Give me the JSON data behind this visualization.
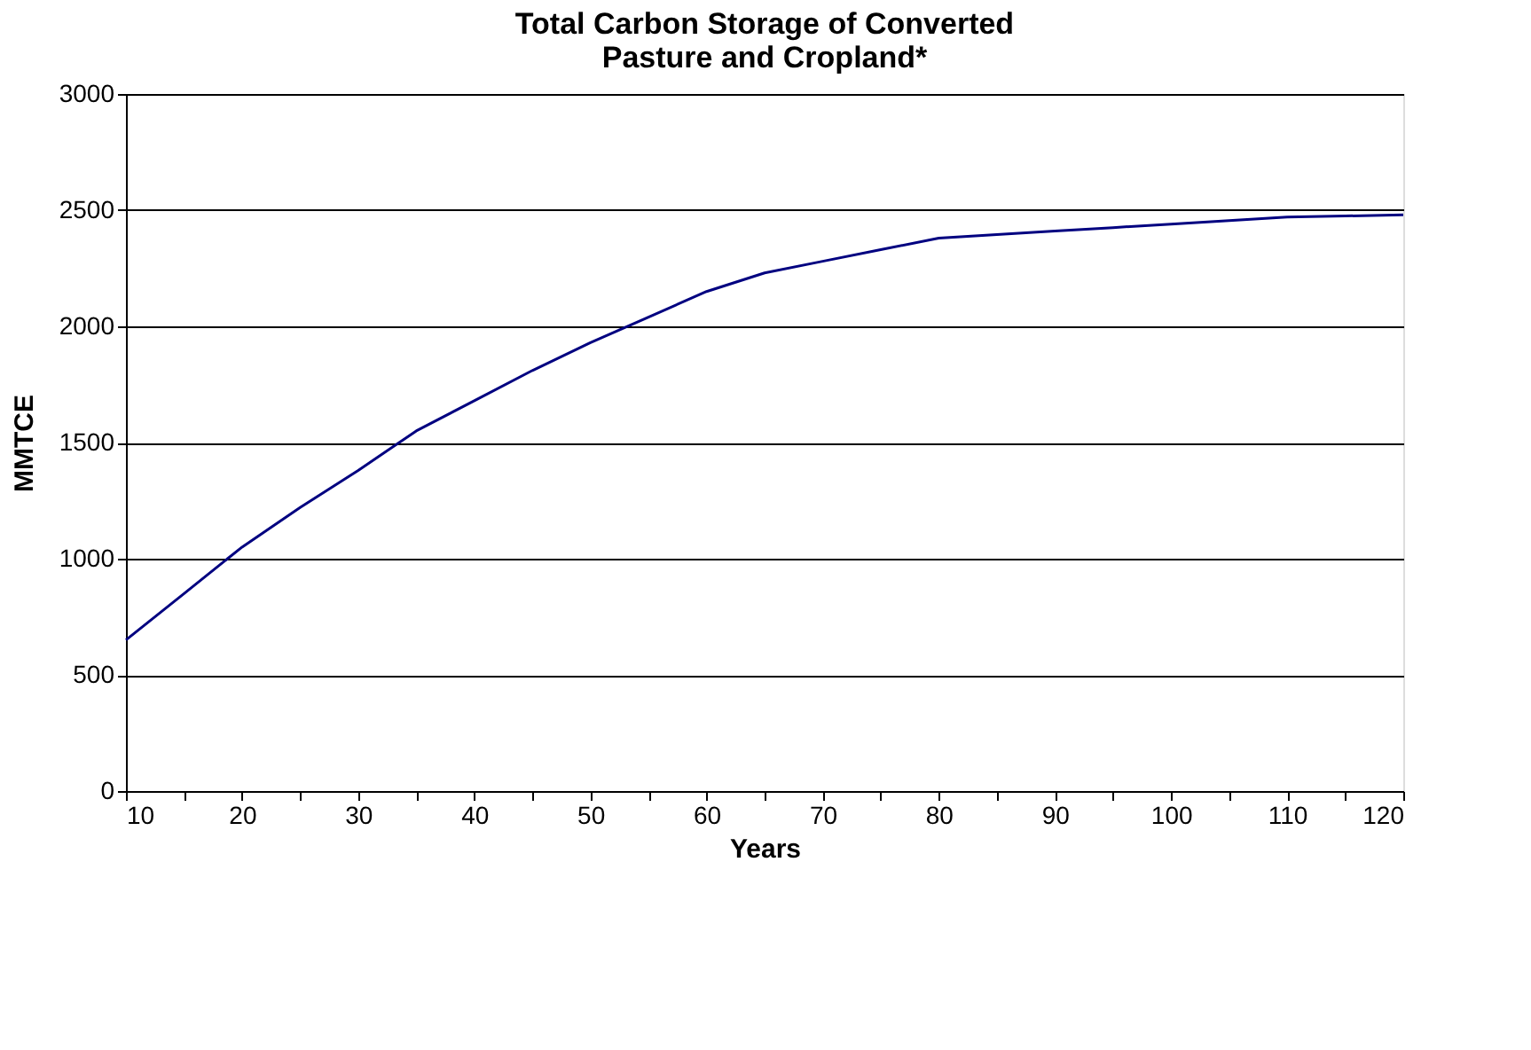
{
  "chart_data": {
    "type": "line",
    "title": "Total Carbon Storage of Converted Pasture and Cropland*",
    "xlabel": "Years",
    "ylabel": "MMTCE",
    "x": [
      10,
      15,
      20,
      25,
      30,
      35,
      40,
      45,
      50,
      55,
      60,
      65,
      70,
      75,
      80,
      85,
      90,
      95,
      100,
      105,
      110,
      115,
      120
    ],
    "series": [
      {
        "color": "#000080",
        "values": [
          650,
          850,
          1050,
          1220,
          1380,
          1550,
          1680,
          1810,
          1930,
          2040,
          2150,
          2230,
          2280,
          2330,
          2380,
          2395,
          2410,
          2425,
          2440,
          2455,
          2470,
          2475,
          2480
        ]
      }
    ],
    "xlim": [
      10,
      120
    ],
    "ylim": [
      0,
      3000
    ],
    "xticks": [
      10,
      {
        "value": 15,
        "label": null
      },
      20,
      {
        "value": 25,
        "label": null
      },
      30,
      {
        "value": 35,
        "label": null
      },
      40,
      {
        "value": 45,
        "label": null
      },
      50,
      {
        "value": 55,
        "label": null
      },
      60,
      {
        "value": 65,
        "label": null
      },
      70,
      {
        "value": 75,
        "label": null
      },
      80,
      {
        "value": 85,
        "label": null
      },
      90,
      {
        "value": 95,
        "label": null
      },
      100,
      {
        "value": 105,
        "label": null
      },
      110,
      {
        "value": 115,
        "label": null
      },
      120
    ],
    "yticks": [
      0,
      500,
      1000,
      1500,
      2000,
      2500,
      3000
    ],
    "grid": "y",
    "legend": false,
    "marker": "none",
    "line_style": "solid"
  }
}
